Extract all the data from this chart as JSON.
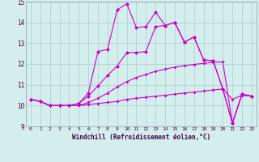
{
  "xlabel": "Windchill (Refroidissement éolien,°C)",
  "xlim": [
    -0.5,
    23.5
  ],
  "ylim": [
    9,
    15
  ],
  "yticks": [
    9,
    10,
    11,
    12,
    13,
    14,
    15
  ],
  "xticks": [
    0,
    1,
    2,
    3,
    4,
    5,
    6,
    7,
    8,
    9,
    10,
    11,
    12,
    13,
    14,
    15,
    16,
    17,
    18,
    19,
    20,
    21,
    22,
    23
  ],
  "bg_color": "#d4eeed",
  "line_color": "#cc00cc",
  "grid_color": "#aacccc",
  "series": [
    [
      10.3,
      10.2,
      10.0,
      10.0,
      10.0,
      10.0,
      10.05,
      10.1,
      10.15,
      10.2,
      10.3,
      10.35,
      10.4,
      10.45,
      10.5,
      10.55,
      10.6,
      10.65,
      10.7,
      10.75,
      10.8,
      10.3,
      10.5,
      10.45
    ],
    [
      10.3,
      10.2,
      10.0,
      10.0,
      10.0,
      10.0,
      10.15,
      10.35,
      10.6,
      10.9,
      11.15,
      11.35,
      11.5,
      11.65,
      11.75,
      11.85,
      11.92,
      11.98,
      12.03,
      12.08,
      12.1,
      9.15,
      10.55,
      10.45
    ],
    [
      10.3,
      10.2,
      10.0,
      10.0,
      10.0,
      10.1,
      10.45,
      10.95,
      11.45,
      11.9,
      12.55,
      12.55,
      12.6,
      13.8,
      13.85,
      14.0,
      13.05,
      13.3,
      12.2,
      12.15,
      10.8,
      9.15,
      10.55,
      10.45
    ],
    [
      10.3,
      10.2,
      10.0,
      10.0,
      10.0,
      10.1,
      10.6,
      12.6,
      12.7,
      14.6,
      14.9,
      13.75,
      13.8,
      14.5,
      13.85,
      14.0,
      13.05,
      13.3,
      12.2,
      12.15,
      10.8,
      9.15,
      10.55,
      10.45
    ]
  ]
}
